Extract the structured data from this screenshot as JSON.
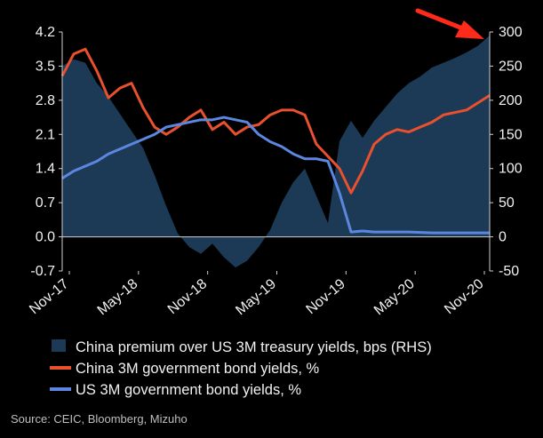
{
  "chart_data": {
    "type": "line",
    "title": "",
    "xlabel": "",
    "ylabel_left": "",
    "ylabel_right": "",
    "x_tick_labels": [
      "Nov-17",
      "May-18",
      "Nov-18",
      "May-19",
      "Nov-19",
      "May-20",
      "Nov-20"
    ],
    "left_axis": {
      "ylim": [
        -0.7,
        4.2
      ],
      "ticks": [
        "4.2",
        "3.5",
        "2.8",
        "2.1",
        "1.4",
        "0.7",
        "0.0",
        "-0.7"
      ],
      "tick_values": [
        4.2,
        3.5,
        2.8,
        2.1,
        1.4,
        0.7,
        0.0,
        -0.7
      ]
    },
    "right_axis": {
      "ylim": [
        -50,
        300
      ],
      "ticks": [
        "300",
        "250",
        "200",
        "150",
        "100",
        "50",
        "0",
        "-50"
      ],
      "tick_values": [
        300,
        250,
        200,
        150,
        100,
        50,
        0,
        -50
      ]
    },
    "grid": false,
    "legend_position": "bottom",
    "x": [
      0,
      1,
      2,
      3,
      4,
      5,
      6,
      7,
      8,
      9,
      10,
      11,
      12,
      13,
      14,
      15,
      16,
      17,
      18,
      19,
      20,
      21,
      22,
      23,
      24,
      25,
      26,
      27,
      28,
      29,
      30,
      31,
      32,
      33,
      34,
      35,
      36,
      37
    ],
    "series": [
      {
        "name": "China premium over US 3M treasury yields, bps (RHS)",
        "axis": "right",
        "kind": "area",
        "color": "#1c3a55",
        "values": [
          250,
          260,
          255,
          225,
          205,
          180,
          155,
          130,
          90,
          45,
          5,
          -15,
          -25,
          -10,
          -30,
          -45,
          -35,
          -15,
          10,
          50,
          80,
          100,
          60,
          20,
          140,
          170,
          145,
          170,
          190,
          210,
          225,
          235,
          248,
          255,
          262,
          270,
          280,
          295
        ]
      },
      {
        "name": "China 3M government bond yields, %",
        "axis": "left",
        "kind": "line",
        "color": "#e8502e",
        "values": [
          3.3,
          3.75,
          3.85,
          3.4,
          2.85,
          3.05,
          3.15,
          2.65,
          2.25,
          2.1,
          2.25,
          2.45,
          2.6,
          2.2,
          2.35,
          2.1,
          2.25,
          2.3,
          2.5,
          2.6,
          2.6,
          2.5,
          1.9,
          1.65,
          1.4,
          0.9,
          1.35,
          1.9,
          2.1,
          2.2,
          2.15,
          2.25,
          2.35,
          2.5,
          2.55,
          2.6,
          2.75,
          2.9
        ]
      },
      {
        "name": "US 3M government bond yields, %",
        "axis": "left",
        "kind": "line",
        "color": "#5b87e0",
        "values": [
          1.2,
          1.35,
          1.45,
          1.55,
          1.7,
          1.8,
          1.9,
          2.0,
          2.1,
          2.25,
          2.3,
          2.35,
          2.4,
          2.4,
          2.45,
          2.4,
          2.35,
          2.1,
          1.95,
          1.85,
          1.7,
          1.6,
          1.6,
          1.55,
          0.9,
          0.1,
          0.12,
          0.1,
          0.1,
          0.1,
          0.1,
          0.09,
          0.08,
          0.08,
          0.08,
          0.08,
          0.08,
          0.08
        ]
      }
    ],
    "annotation": {
      "type": "arrow",
      "color": "#ff2a1a"
    },
    "source": "Source: CEIC, Bloomberg, Mizuho"
  }
}
